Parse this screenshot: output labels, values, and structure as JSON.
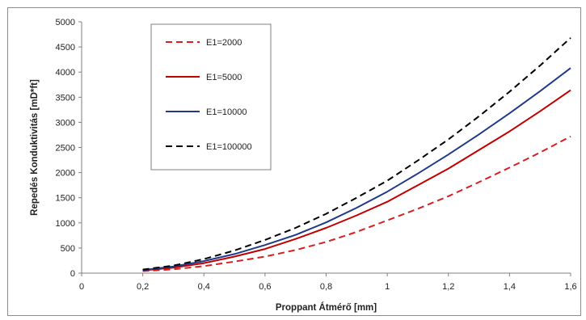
{
  "chart_data": {
    "type": "line",
    "title": "",
    "xlabel": "Proppant Átmérő [mm]",
    "ylabel": "Repedés Konduktivitás [mD*ft]",
    "xlim": [
      0,
      1.6
    ],
    "ylim": [
      0,
      5000
    ],
    "xticks": [
      0,
      0.2,
      0.4,
      0.6,
      0.8,
      1,
      1.2,
      1.4,
      1.6
    ],
    "xtick_labels": [
      "0",
      "0,2",
      "0,4",
      "0,6",
      "0,8",
      "1",
      "1,2",
      "1,4",
      "1,6"
    ],
    "yticks": [
      0,
      500,
      1000,
      1500,
      2000,
      2500,
      3000,
      3500,
      4000,
      4500,
      5000
    ],
    "ytick_labels": [
      "0",
      "500",
      "1000",
      "1500",
      "2000",
      "2500",
      "3000",
      "3500",
      "4000",
      "4500",
      "5000"
    ],
    "grid": false,
    "legend_position": "top-left",
    "series": [
      {
        "name": "E1=2000",
        "color": "#d42020",
        "dash": "dashed",
        "x": [
          0.2,
          0.3,
          0.4,
          0.5,
          0.6,
          0.7,
          0.8,
          0.9,
          1.0,
          1.1,
          1.2,
          1.3,
          1.4,
          1.5,
          1.6
        ],
        "y": [
          40,
          75,
          140,
          230,
          330,
          460,
          620,
          820,
          1050,
          1280,
          1530,
          1810,
          2100,
          2400,
          2720
        ]
      },
      {
        "name": "E1=5000",
        "color": "#c00000",
        "dash": "solid",
        "x": [
          0.2,
          0.3,
          0.4,
          0.5,
          0.6,
          0.7,
          0.8,
          0.9,
          1.0,
          1.1,
          1.2,
          1.3,
          1.4,
          1.5,
          1.6
        ],
        "y": [
          55,
          110,
          200,
          330,
          480,
          680,
          900,
          1150,
          1420,
          1750,
          2080,
          2450,
          2820,
          3220,
          3640
        ]
      },
      {
        "name": "E1=10000",
        "color": "#1f3a8a",
        "dash": "solid",
        "x": [
          0.2,
          0.3,
          0.4,
          0.5,
          0.6,
          0.7,
          0.8,
          0.9,
          1.0,
          1.1,
          1.2,
          1.3,
          1.4,
          1.5,
          1.6
        ],
        "y": [
          60,
          130,
          240,
          380,
          560,
          760,
          1010,
          1300,
          1620,
          1980,
          2360,
          2760,
          3180,
          3620,
          4080
        ]
      },
      {
        "name": "E1=100000",
        "color": "#000000",
        "dash": "dashed",
        "x": [
          0.2,
          0.3,
          0.4,
          0.5,
          0.6,
          0.7,
          0.8,
          0.9,
          1.0,
          1.1,
          1.2,
          1.3,
          1.4,
          1.5,
          1.6
        ],
        "y": [
          70,
          150,
          280,
          450,
          660,
          900,
          1180,
          1500,
          1840,
          2240,
          2660,
          3120,
          3610,
          4130,
          4680
        ]
      }
    ]
  }
}
